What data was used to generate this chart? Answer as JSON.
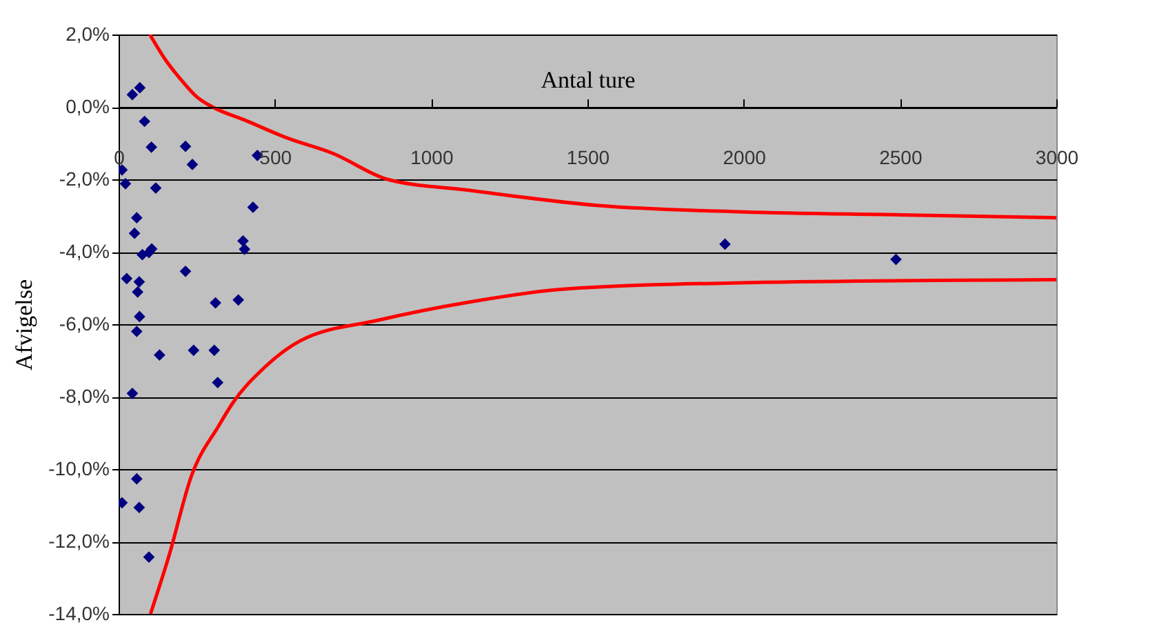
{
  "chart_data": {
    "type": "scatter",
    "xlabel": "Antal ture",
    "ylabel": "Afvigelse",
    "xlim": [
      0,
      3000
    ],
    "xticks": [
      0,
      500,
      1000,
      1500,
      2000,
      2500,
      3000
    ],
    "ylim": [
      -14,
      2
    ],
    "yticks": [
      {
        "value": 2,
        "label": "2,0%"
      },
      {
        "value": 0,
        "label": "0,0%"
      },
      {
        "value": -2,
        "label": "-2,0%"
      },
      {
        "value": -4,
        "label": "-4,0%"
      },
      {
        "value": -6,
        "label": "-6,0%"
      },
      {
        "value": -8,
        "label": "-8,0%"
      },
      {
        "value": -10,
        "label": "-10,0%"
      },
      {
        "value": -12,
        "label": "-12,0%"
      },
      {
        "value": -14,
        "label": "-14,0%"
      }
    ],
    "grid": "y",
    "series": [
      {
        "type": "scatter",
        "color": "#000080",
        "marker": "diamond",
        "x": [
          44,
          68,
          83,
          105,
          214,
          236,
          11,
          22,
          119,
          58,
          51,
          76,
          97,
          106,
          214,
          26,
          66,
          61,
          310,
          383,
          67,
          58,
          131,
          240,
          306,
          317,
          44,
          58,
          11,
          66,
          97,
          430,
          398,
          403,
          444,
          1940,
          2487
        ],
        "values": [
          0.34,
          0.53,
          -0.4,
          -1.11,
          -1.09,
          -1.59,
          -1.74,
          -2.12,
          -2.24,
          -3.06,
          -3.49,
          -4.08,
          -4.02,
          -3.92,
          -4.54,
          -4.74,
          -4.83,
          -5.11,
          -5.41,
          -5.33,
          -5.79,
          -6.2,
          -6.85,
          -6.72,
          -6.72,
          -7.61,
          -7.91,
          -10.27,
          -10.93,
          -11.06,
          -12.43,
          -2.77,
          -3.7,
          -3.93,
          -1.34,
          -3.79,
          -4.21
        ]
      },
      {
        "type": "line",
        "color": "#ff0000",
        "marker": "none",
        "line_style": "solid",
        "x": [
          100,
          150,
          200,
          250,
          300,
          400,
          540,
          685,
          860,
          1120,
          1530,
          2000,
          2500,
          3000
        ],
        "values": [
          2.0,
          1.3,
          0.75,
          0.28,
          0.0,
          -0.35,
          -0.86,
          -1.28,
          -2.0,
          -2.3,
          -2.72,
          -2.9,
          -2.98,
          -3.06
        ]
      },
      {
        "type": "line",
        "color": "#ff0000",
        "marker": "none",
        "line_style": "solid",
        "x": [
          102,
          160,
          233,
          320,
          364,
          466,
          583,
          830,
          1121,
          1413,
          1967,
          3000
        ],
        "values": [
          -14.0,
          -12.43,
          -10.19,
          -8.81,
          -8.19,
          -7.2,
          -6.45,
          -5.89,
          -5.39,
          -5.04,
          -4.86,
          -4.77
        ]
      }
    ]
  }
}
